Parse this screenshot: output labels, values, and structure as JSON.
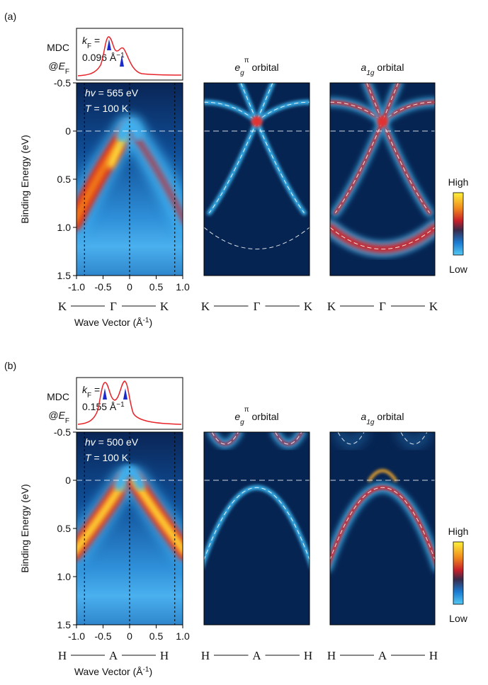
{
  "panels": [
    {
      "label": "(a)",
      "mdc": "MDC",
      "at": "@",
      "ef": "E",
      "ef_sub": "F",
      "kf": "k",
      "kf_sub": "F",
      "kf_eq": " =",
      "kf_value": "0.096 Å",
      "kf_exp": "−1",
      "hv": "hv",
      "hv_value": " = 565 eV",
      "t": "T",
      "t_value": " = 100 K",
      "sim_titles": [
        {
          "main": "e",
          "sub": "g",
          "sup": "π",
          "rest": " orbital"
        },
        {
          "main": "a",
          "sub": "1g",
          "rest": " orbital"
        }
      ],
      "points": [
        "K",
        "Γ",
        "K"
      ]
    },
    {
      "label": "(b)",
      "mdc": "MDC",
      "at": "@",
      "ef": "E",
      "ef_sub": "F",
      "kf": "k",
      "kf_sub": "F",
      "kf_eq": " =",
      "kf_value": "0.155 Å",
      "kf_exp": "−1",
      "hv": "hv",
      "hv_value": " = 500 eV",
      "t": "T",
      "t_value": " = 100 K",
      "sim_titles": [
        {
          "main": "e",
          "sub": "g",
          "sup": "π",
          "rest": " orbital"
        },
        {
          "main": "a",
          "sub": "1g",
          "rest": " orbital"
        }
      ],
      "points": [
        "H",
        "A",
        "H"
      ]
    }
  ],
  "y_axis": {
    "label": "Binding Energy (eV)",
    "ylim": [
      -0.5,
      1.5
    ],
    "yticks": [
      -0.5,
      0,
      0.5,
      {
        "value": 1,
        "label": "1.0"
      },
      1.5
    ]
  },
  "x_axis": {
    "label": "Wave Vector (Å",
    "label_exp": "-1",
    "label_end": ")",
    "xlim": [
      -1,
      1
    ],
    "xticks": [
      {
        "value": -1,
        "label": "-1.0"
      },
      -0.5,
      0,
      0.5,
      {
        "value": 1,
        "label": "1.0"
      }
    ]
  },
  "colorbar": {
    "high": "High",
    "low": "Low"
  }
}
